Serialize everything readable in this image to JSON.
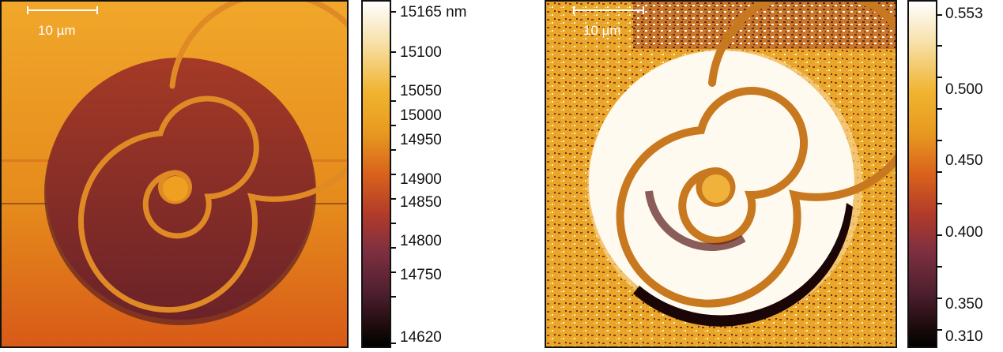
{
  "height_panel": {
    "scale_label": "10 µm",
    "colorbar_labels": [
      "15165 nm",
      "15100",
      "15050",
      "15000",
      "14950",
      "14900",
      "14850",
      "14800",
      "14750",
      "14620"
    ]
  },
  "phase_panel": {
    "scale_label": "10 µm",
    "colorbar_labels": [
      "0.553",
      "0.500",
      "0.450",
      "0.400",
      "0.350",
      "0.310"
    ]
  },
  "colors": {
    "background_orange": "#e8931f",
    "disc_dark": "#8a2a22",
    "ridge_orange": "#e07b1e",
    "phase_disc": "#fffaf0",
    "phase_spiral": "#d9862a",
    "phase_shadow": "#1a0606"
  }
}
